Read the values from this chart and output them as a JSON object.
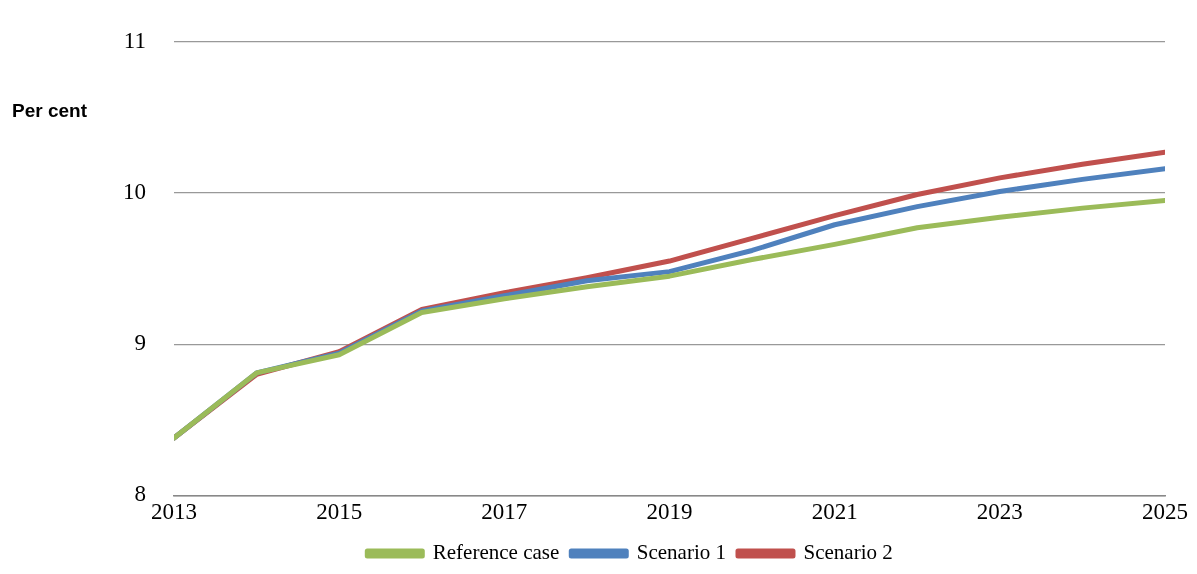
{
  "chart_data": {
    "type": "line",
    "ylabel": "Per cent",
    "x": [
      2013,
      2014,
      2015,
      2016,
      2017,
      2018,
      2019,
      2020,
      2021,
      2022,
      2023,
      2024,
      2025
    ],
    "series": [
      {
        "name": "Reference case",
        "color": "#9bbb59",
        "values": [
          8.38,
          8.81,
          8.93,
          9.21,
          9.3,
          9.38,
          9.45,
          9.56,
          9.66,
          9.77,
          9.84,
          9.9,
          9.95
        ]
      },
      {
        "name": "Scenario 1",
        "color": "#4f81bd",
        "values": [
          8.38,
          8.81,
          8.94,
          9.22,
          9.32,
          9.42,
          9.48,
          9.62,
          9.79,
          9.91,
          10.01,
          10.09,
          10.16
        ]
      },
      {
        "name": "Scenario 2",
        "color": "#c0504d",
        "values": [
          8.38,
          8.8,
          8.95,
          9.23,
          9.34,
          9.44,
          9.55,
          9.7,
          9.85,
          9.99,
          10.1,
          10.19,
          10.27
        ]
      }
    ],
    "xlim": [
      2013,
      2025
    ],
    "xticks": [
      2013,
      2015,
      2017,
      2019,
      2021,
      2023,
      2025
    ],
    "ylim": [
      8,
      11
    ],
    "yticks": [
      8,
      9,
      10,
      11
    ],
    "grid": "y",
    "legend": "bottom",
    "marker": "none",
    "line_style": "solid"
  }
}
